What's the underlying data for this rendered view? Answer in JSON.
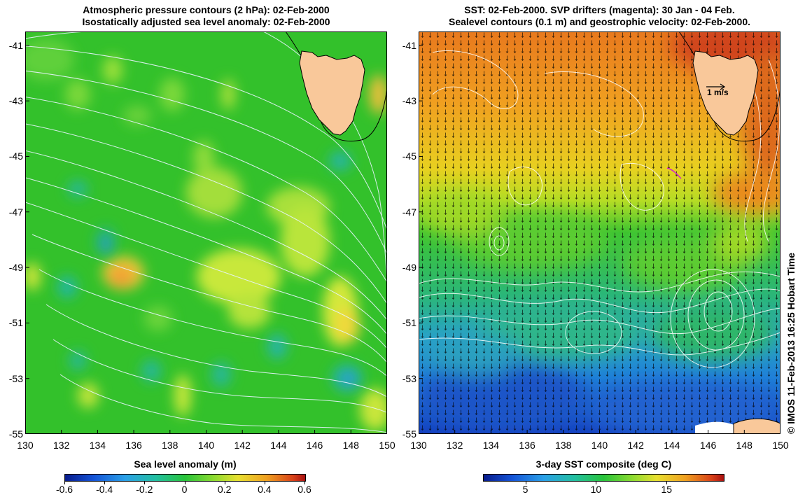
{
  "left_panel": {
    "title_line1": "Atmospheric pressure contours (2 hPa): 02-Feb-2000",
    "title_line2": "Isostatically adjusted sea level anomaly: 02-Feb-2000",
    "colorbar_label": "Sea level anomaly (m)",
    "colorbar_ticks": [
      "-0.6",
      "-0.4",
      "-0.2",
      "0",
      "0.2",
      "0.4",
      "0.6"
    ],
    "colorbar_range": [
      -0.6,
      0.6
    ]
  },
  "right_panel": {
    "title_line1": "SST: 02-Feb-2000. SVP drifters (magenta): 30 Jan - 04 Feb.",
    "title_line2": "Sealevel contours (0.1 m) and geostrophic velocity: 02-Feb-2000.",
    "colorbar_label": "3-day SST composite (deg C)",
    "colorbar_ticks": [
      "5",
      "10",
      "15"
    ],
    "colorbar_tick_values": [
      5,
      10,
      15
    ],
    "colorbar_range": [
      2,
      19
    ],
    "velocity_scale_label": "1 m/s"
  },
  "axes": {
    "lon_ticks": [
      "130",
      "132",
      "134",
      "136",
      "138",
      "140",
      "142",
      "144",
      "146",
      "148",
      "150"
    ],
    "lat_ticks": [
      "-41",
      "-43",
      "-45",
      "-47",
      "-49",
      "-51",
      "-53",
      "-55"
    ],
    "lon_range": [
      130,
      150
    ],
    "lat_range": [
      -55,
      -40.5
    ]
  },
  "copyright": "© IMOS 11-Feb-2013 16:25 Hobart Time",
  "colors": {
    "land": "#f9c89a",
    "coastline": "#000000",
    "pressure_contour": "#e8f4ff",
    "sealevel_contour": "#ffffff",
    "vector": "#000000"
  }
}
